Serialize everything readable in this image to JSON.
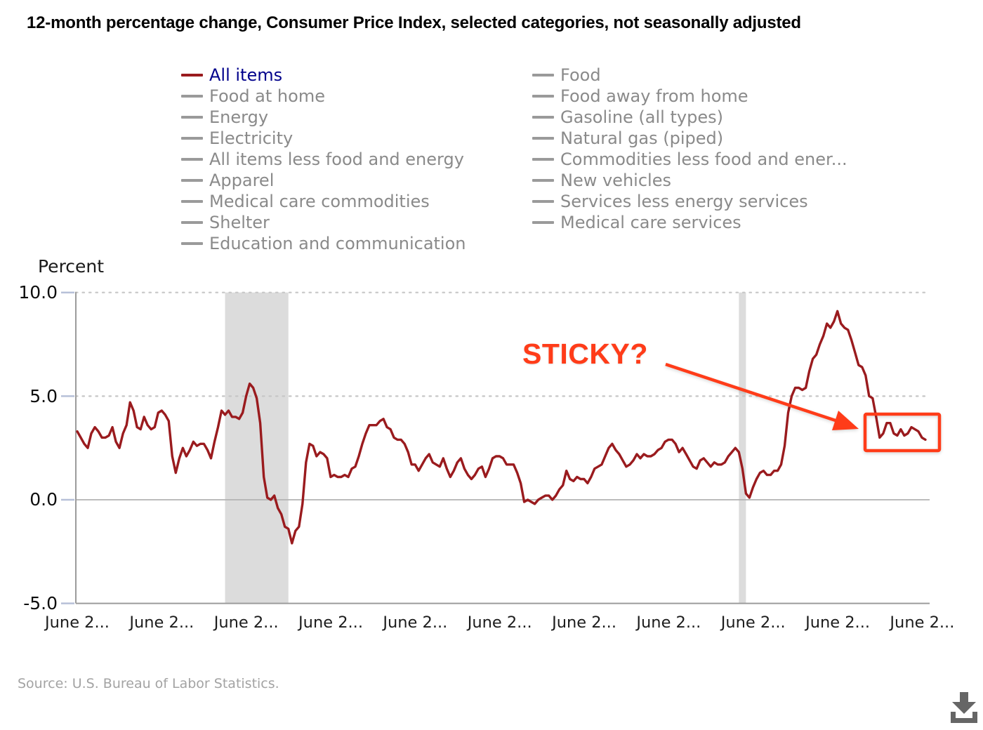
{
  "title": "12-month percentage change, Consumer Price Index, selected categories, not seasonally adjusted",
  "annotation": {
    "text": "STICKY?"
  },
  "source": {
    "text": "Source: U.S. Bureau of Labor Statistics."
  },
  "colors": {
    "all_items_line": "#9a1b1e",
    "selected_legend_text": "#00008b",
    "legend_gray": "#8a8a8a",
    "annotation": "#ff3c19",
    "recession_band": "#dcdcdc",
    "download_icon": "#666666"
  },
  "y_axis": {
    "label": "Percent",
    "ticks": [
      "10.0",
      "5.0",
      "0.0",
      "-5.0"
    ]
  },
  "x_axis": {
    "labels": [
      "June 2...",
      "June 2...",
      "June 2...",
      "June 2...",
      "June 2...",
      "June 2...",
      "June 2...",
      "June 2...",
      "June 2...",
      "June 2...",
      "June 2..."
    ]
  },
  "legend": {
    "column1": [
      {
        "label": "All items",
        "selected": true,
        "swatch": "#9a1b1e"
      },
      {
        "label": "Food at home",
        "selected": false,
        "swatch": "#9a9a9a"
      },
      {
        "label": "Energy",
        "selected": false,
        "swatch": "#9a9a9a"
      },
      {
        "label": "Electricity",
        "selected": false,
        "swatch": "#9a9a9a"
      },
      {
        "label": "All items less food and energy",
        "selected": false,
        "swatch": "#9a9a9a"
      },
      {
        "label": "Apparel",
        "selected": false,
        "swatch": "#9a9a9a"
      },
      {
        "label": "Medical care commodities",
        "selected": false,
        "swatch": "#9a9a9a"
      },
      {
        "label": "Shelter",
        "selected": false,
        "swatch": "#9a9a9a"
      },
      {
        "label": "Education and communication",
        "selected": false,
        "swatch": "#9a9a9a"
      }
    ],
    "column2": [
      {
        "label": "Food",
        "selected": false,
        "swatch": "#9a9a9a"
      },
      {
        "label": "Food away from home",
        "selected": false,
        "swatch": "#9a9a9a"
      },
      {
        "label": "Gasoline (all types)",
        "selected": false,
        "swatch": "#9a9a9a"
      },
      {
        "label": "Natural gas (piped)",
        "selected": false,
        "swatch": "#9a9a9a"
      },
      {
        "label": "Commodities less food and ener...",
        "selected": false,
        "swatch": "#9a9a9a"
      },
      {
        "label": "New vehicles",
        "selected": false,
        "swatch": "#9a9a9a"
      },
      {
        "label": "Services less energy services",
        "selected": false,
        "swatch": "#9a9a9a"
      },
      {
        "label": "Medical care services",
        "selected": false,
        "swatch": "#9a9a9a"
      }
    ]
  },
  "chart_data": {
    "type": "line",
    "title": "12-month percentage change, Consumer Price Index, selected categories, not seasonally adjusted",
    "ylabel": "Percent",
    "ylim": [
      -5,
      10
    ],
    "y_gridlines_dotted": [
      10,
      5
    ],
    "y_gridlines_solid": [
      0
    ],
    "x_start": "June 2004",
    "x_end": "July 2024",
    "frequency": "monthly",
    "x_tick_interval_months": 24,
    "recession_band_month_indices": [
      [
        42,
        60
      ],
      [
        188,
        190
      ]
    ],
    "series": [
      {
        "name": "All items",
        "color": "#9a1b1e",
        "values": [
          3.3,
          3.0,
          2.7,
          2.5,
          3.2,
          3.5,
          3.3,
          3.0,
          3.0,
          3.1,
          3.5,
          2.8,
          2.5,
          3.2,
          3.6,
          4.7,
          4.3,
          3.5,
          3.4,
          4.0,
          3.6,
          3.4,
          3.5,
          4.2,
          4.3,
          4.1,
          3.8,
          2.1,
          1.3,
          2.0,
          2.5,
          2.1,
          2.4,
          2.8,
          2.6,
          2.7,
          2.7,
          2.4,
          2.0,
          2.8,
          3.5,
          4.3,
          4.1,
          4.3,
          4.0,
          4.0,
          3.9,
          4.2,
          5.0,
          5.6,
          5.4,
          4.9,
          3.7,
          1.1,
          0.1,
          0.0,
          0.2,
          -0.4,
          -0.7,
          -1.3,
          -1.4,
          -2.1,
          -1.5,
          -1.3,
          -0.2,
          1.8,
          2.7,
          2.6,
          2.1,
          2.3,
          2.2,
          2.0,
          1.1,
          1.2,
          1.1,
          1.1,
          1.2,
          1.1,
          1.5,
          1.6,
          2.1,
          2.7,
          3.2,
          3.6,
          3.6,
          3.6,
          3.8,
          3.9,
          3.5,
          3.4,
          3.0,
          2.9,
          2.9,
          2.7,
          2.3,
          1.7,
          1.7,
          1.4,
          1.7,
          2.0,
          2.2,
          1.8,
          1.7,
          1.6,
          2.0,
          1.5,
          1.1,
          1.4,
          1.8,
          2.0,
          1.5,
          1.2,
          1.0,
          1.2,
          1.5,
          1.6,
          1.1,
          1.5,
          2.0,
          2.1,
          2.1,
          2.0,
          1.7,
          1.7,
          1.7,
          1.3,
          0.8,
          -0.1,
          0.0,
          -0.1,
          -0.2,
          0.0,
          0.1,
          0.2,
          0.2,
          0.0,
          0.2,
          0.5,
          0.7,
          1.4,
          1.0,
          0.9,
          1.1,
          1.0,
          1.0,
          0.8,
          1.1,
          1.5,
          1.6,
          1.7,
          2.1,
          2.5,
          2.7,
          2.4,
          2.2,
          1.9,
          1.6,
          1.7,
          1.9,
          2.2,
          2.0,
          2.2,
          2.1,
          2.1,
          2.2,
          2.4,
          2.5,
          2.8,
          2.9,
          2.9,
          2.7,
          2.3,
          2.5,
          2.2,
          1.9,
          1.6,
          1.5,
          1.9,
          2.0,
          1.8,
          1.6,
          1.8,
          1.7,
          1.7,
          1.8,
          2.1,
          2.3,
          2.5,
          2.3,
          1.5,
          0.3,
          0.1,
          0.6,
          1.0,
          1.3,
          1.4,
          1.2,
          1.2,
          1.4,
          1.4,
          1.7,
          2.6,
          4.2,
          5.0,
          5.4,
          5.4,
          5.3,
          5.4,
          6.2,
          6.8,
          7.0,
          7.5,
          7.9,
          8.5,
          8.3,
          8.6,
          9.1,
          8.5,
          8.3,
          8.2,
          7.7,
          7.1,
          6.5,
          6.4,
          6.0,
          5.0,
          4.9,
          4.0,
          3.0,
          3.2,
          3.7,
          3.7,
          3.2,
          3.1,
          3.4,
          3.1,
          3.2,
          3.5,
          3.4,
          3.3,
          3.0,
          2.9
        ]
      }
    ],
    "annotations": [
      {
        "type": "text",
        "text": "STICKY?",
        "color": "#ff3c19"
      },
      {
        "type": "box",
        "around": "June 2023 - July 2024 values near 3%",
        "color": "#ff3c19"
      },
      {
        "type": "arrow",
        "from": "STICKY? label",
        "to": "highlight box",
        "color": "#ff3c19"
      }
    ]
  }
}
